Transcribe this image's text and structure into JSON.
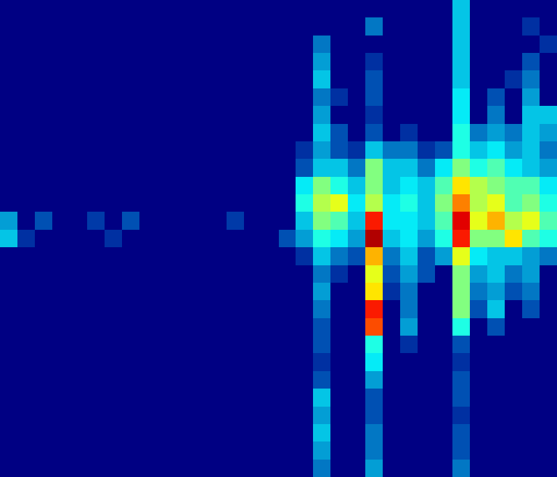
{
  "chart_data": {
    "type": "heatmap",
    "tick_labels": false,
    "zlim": [
      0,
      1
    ],
    "cells": [
      [
        0,
        0,
        0,
        0,
        0,
        0,
        0,
        0,
        0,
        0,
        0,
        0,
        0,
        0,
        0,
        0,
        0,
        0,
        0,
        0,
        0,
        0,
        0,
        0,
        0,
        0,
        0.3,
        0,
        0,
        0,
        0,
        0
      ],
      [
        0,
        0,
        0,
        0,
        0,
        0,
        0,
        0,
        0,
        0,
        0,
        0,
        0,
        0,
        0,
        0,
        0,
        0,
        0,
        0,
        0,
        0.2,
        0,
        0,
        0,
        0,
        0.3,
        0,
        0,
        0,
        0.1,
        0
      ],
      [
        0,
        0,
        0,
        0,
        0,
        0,
        0,
        0,
        0,
        0,
        0,
        0,
        0,
        0,
        0,
        0,
        0,
        0,
        0.2,
        0,
        0,
        0,
        0,
        0,
        0,
        0,
        0.3,
        0,
        0,
        0,
        0,
        0.1
      ],
      [
        0,
        0,
        0,
        0,
        0,
        0,
        0,
        0,
        0,
        0,
        0,
        0,
        0,
        0,
        0,
        0,
        0,
        0,
        0.25,
        0,
        0,
        0.1,
        0,
        0,
        0,
        0,
        0.3,
        0,
        0,
        0,
        0.15,
        0
      ],
      [
        0,
        0,
        0,
        0,
        0,
        0,
        0,
        0,
        0,
        0,
        0,
        0,
        0,
        0,
        0,
        0,
        0,
        0,
        0.3,
        0,
        0,
        0.15,
        0,
        0,
        0,
        0,
        0.3,
        0,
        0,
        0.1,
        0.2,
        0
      ],
      [
        0,
        0,
        0,
        0,
        0,
        0,
        0,
        0,
        0,
        0,
        0,
        0,
        0,
        0,
        0,
        0,
        0,
        0,
        0.2,
        0.1,
        0,
        0.15,
        0,
        0,
        0,
        0,
        0.35,
        0,
        0.15,
        0,
        0.25,
        0
      ],
      [
        0,
        0,
        0,
        0,
        0,
        0,
        0,
        0,
        0,
        0,
        0,
        0,
        0,
        0,
        0,
        0,
        0,
        0,
        0.25,
        0,
        0,
        0.1,
        0,
        0,
        0,
        0,
        0.35,
        0,
        0.2,
        0,
        0.3,
        0.3
      ],
      [
        0,
        0,
        0,
        0,
        0,
        0,
        0,
        0,
        0,
        0,
        0,
        0,
        0,
        0,
        0,
        0,
        0,
        0,
        0.3,
        0.15,
        0,
        0.15,
        0,
        0.1,
        0,
        0,
        0.4,
        0.2,
        0.25,
        0.2,
        0.3,
        0.25
      ],
      [
        0,
        0,
        0,
        0,
        0,
        0,
        0,
        0,
        0,
        0,
        0,
        0,
        0,
        0,
        0,
        0,
        0,
        0.1,
        0.25,
        0.15,
        0.1,
        0.3,
        0.2,
        0.2,
        0.1,
        0.15,
        0.4,
        0.3,
        0.35,
        0.25,
        0.3,
        0.2
      ],
      [
        0,
        0,
        0,
        0,
        0,
        0,
        0,
        0,
        0,
        0,
        0,
        0,
        0,
        0,
        0,
        0,
        0,
        0.15,
        0.3,
        0.3,
        0.2,
        0.5,
        0.3,
        0.3,
        0.2,
        0.35,
        0.5,
        0.4,
        0.45,
        0.35,
        0.3,
        0.25
      ],
      [
        0,
        0,
        0,
        0,
        0,
        0,
        0,
        0,
        0,
        0,
        0,
        0,
        0,
        0,
        0,
        0,
        0,
        0.35,
        0.5,
        0.4,
        0.3,
        0.5,
        0.3,
        0.35,
        0.3,
        0.45,
        0.65,
        0.55,
        0.5,
        0.45,
        0.45,
        0.35
      ],
      [
        0,
        0,
        0,
        0,
        0,
        0,
        0,
        0,
        0,
        0,
        0,
        0,
        0,
        0,
        0,
        0,
        0,
        0.4,
        0.55,
        0.6,
        0.35,
        0.55,
        0.35,
        0.4,
        0.3,
        0.5,
        0.75,
        0.55,
        0.6,
        0.45,
        0.5,
        0.4
      ],
      [
        0.25,
        0,
        0.15,
        0,
        0,
        0.12,
        0,
        0.15,
        0,
        0,
        0,
        0,
        0,
        0.12,
        0,
        0,
        0,
        0.3,
        0.5,
        0.45,
        0.3,
        0.85,
        0.35,
        0.35,
        0.3,
        0.45,
        0.9,
        0.6,
        0.7,
        0.55,
        0.6,
        0.45
      ],
      [
        0.3,
        0.1,
        0,
        0,
        0,
        0,
        0.1,
        0,
        0,
        0,
        0,
        0,
        0,
        0,
        0,
        0,
        0.15,
        0.25,
        0.4,
        0.35,
        0.25,
        0.95,
        0.3,
        0.35,
        0.25,
        0.4,
        0.85,
        0.5,
        0.5,
        0.65,
        0.45,
        0.4
      ],
      [
        0,
        0,
        0,
        0,
        0,
        0,
        0,
        0,
        0,
        0,
        0,
        0,
        0,
        0,
        0,
        0,
        0,
        0.1,
        0.3,
        0.2,
        0.15,
        0.7,
        0.2,
        0.3,
        0.15,
        0.25,
        0.6,
        0.35,
        0.3,
        0.3,
        0.25,
        0.2
      ],
      [
        0,
        0,
        0,
        0,
        0,
        0,
        0,
        0,
        0,
        0,
        0,
        0,
        0,
        0,
        0,
        0,
        0,
        0,
        0.2,
        0.1,
        0,
        0.6,
        0.15,
        0.25,
        0.15,
        0,
        0.5,
        0.25,
        0.3,
        0.2,
        0.25,
        0
      ],
      [
        0,
        0,
        0,
        0,
        0,
        0,
        0,
        0,
        0,
        0,
        0,
        0,
        0,
        0,
        0,
        0,
        0,
        0,
        0.25,
        0,
        0,
        0.65,
        0.1,
        0.2,
        0,
        0,
        0.5,
        0.2,
        0.25,
        0.15,
        0.2,
        0
      ],
      [
        0,
        0,
        0,
        0,
        0,
        0,
        0,
        0,
        0,
        0,
        0,
        0,
        0,
        0,
        0,
        0,
        0,
        0,
        0.2,
        0,
        0,
        0.85,
        0,
        0.2,
        0,
        0,
        0.5,
        0.15,
        0.3,
        0,
        0.15,
        0
      ],
      [
        0,
        0,
        0,
        0,
        0,
        0,
        0,
        0,
        0,
        0,
        0,
        0,
        0,
        0,
        0,
        0,
        0,
        0,
        0.15,
        0,
        0,
        0.8,
        0,
        0.25,
        0,
        0,
        0.4,
        0,
        0.15,
        0,
        0,
        0
      ],
      [
        0,
        0,
        0,
        0,
        0,
        0,
        0,
        0,
        0,
        0,
        0,
        0,
        0,
        0,
        0,
        0,
        0,
        0,
        0.15,
        0,
        0,
        0.4,
        0,
        0.1,
        0,
        0,
        0.15,
        0,
        0,
        0,
        0,
        0
      ],
      [
        0,
        0,
        0,
        0,
        0,
        0,
        0,
        0,
        0,
        0,
        0,
        0,
        0,
        0,
        0,
        0,
        0,
        0,
        0.1,
        0,
        0,
        0.35,
        0,
        0,
        0,
        0,
        0.1,
        0,
        0,
        0,
        0,
        0
      ],
      [
        0,
        0,
        0,
        0,
        0,
        0,
        0,
        0,
        0,
        0,
        0,
        0,
        0,
        0,
        0,
        0,
        0,
        0,
        0.15,
        0,
        0,
        0.25,
        0,
        0,
        0,
        0,
        0.15,
        0,
        0,
        0,
        0,
        0
      ],
      [
        0,
        0,
        0,
        0,
        0,
        0,
        0,
        0,
        0,
        0,
        0,
        0,
        0,
        0,
        0,
        0,
        0,
        0,
        0.3,
        0,
        0,
        0.15,
        0,
        0,
        0,
        0,
        0.15,
        0,
        0,
        0,
        0,
        0
      ],
      [
        0,
        0,
        0,
        0,
        0,
        0,
        0,
        0,
        0,
        0,
        0,
        0,
        0,
        0,
        0,
        0,
        0,
        0,
        0.25,
        0,
        0,
        0.15,
        0,
        0,
        0,
        0,
        0.1,
        0,
        0,
        0,
        0,
        0
      ],
      [
        0,
        0,
        0,
        0,
        0,
        0,
        0,
        0,
        0,
        0,
        0,
        0,
        0,
        0,
        0,
        0,
        0,
        0,
        0.3,
        0,
        0,
        0.2,
        0,
        0,
        0,
        0,
        0.15,
        0,
        0,
        0,
        0,
        0
      ],
      [
        0,
        0,
        0,
        0,
        0,
        0,
        0,
        0,
        0,
        0,
        0,
        0,
        0,
        0,
        0,
        0,
        0,
        0,
        0.25,
        0,
        0,
        0.2,
        0,
        0,
        0,
        0,
        0.15,
        0,
        0,
        0,
        0,
        0
      ],
      [
        0,
        0,
        0,
        0,
        0,
        0,
        0,
        0,
        0,
        0,
        0,
        0,
        0,
        0,
        0,
        0,
        0,
        0,
        0.2,
        0,
        0,
        0.25,
        0,
        0,
        0,
        0,
        0.2,
        0,
        0,
        0,
        0,
        0
      ]
    ]
  }
}
